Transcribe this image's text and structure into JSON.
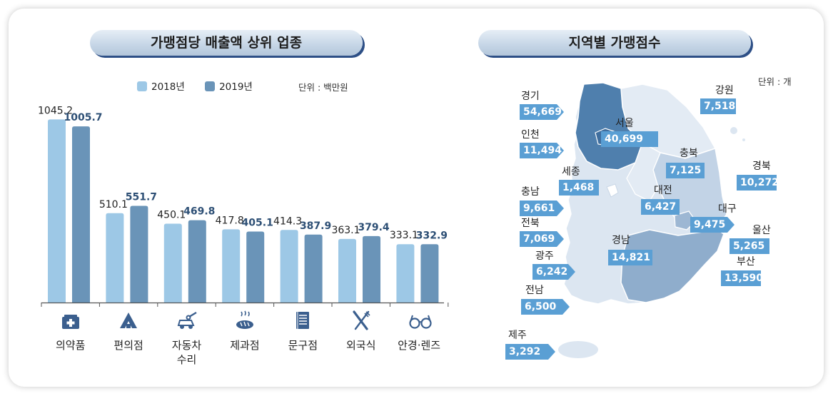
{
  "colors": {
    "y2018": "#9dc8e6",
    "y2019": "#6a94b8",
    "label2019": "#2d4f75",
    "tag": "#5a9fd4"
  },
  "left_panel": {
    "title": "가맹점당 매출액 상위 업종",
    "unit": "단위 : 백만원"
  },
  "right_panel": {
    "title": "지역별 가맹점수",
    "unit": "단위 : 개"
  },
  "chart_data": {
    "type": "bar",
    "title": "가맹점당 매출액 상위 업종",
    "categories": [
      "의약품",
      "편의점",
      "자동차 수리",
      "제과점",
      "문구점",
      "외국식",
      "안경·렌즈"
    ],
    "category_lines": [
      [
        "의약품"
      ],
      [
        "편의점"
      ],
      [
        "자동차",
        "수리"
      ],
      [
        "제과점"
      ],
      [
        "문구점"
      ],
      [
        "외국식"
      ],
      [
        "안경·렌즈"
      ]
    ],
    "category_icons": [
      "medicine-icon",
      "convenience-store-icon",
      "car-repair-icon",
      "bakery-icon",
      "stationery-icon",
      "fork-knife-icon",
      "glasses-icon"
    ],
    "series": [
      {
        "name": "2018년",
        "values": [
          1045.2,
          510.1,
          450.1,
          417.8,
          414.3,
          363.1,
          333.1
        ],
        "labels": [
          "1045.2",
          "510.1",
          "450.1",
          "417.8",
          "414.3",
          "363.1",
          "333.1"
        ]
      },
      {
        "name": "2019년",
        "values": [
          1005.7,
          551.7,
          469.8,
          405.1,
          387.9,
          379.4,
          332.9
        ],
        "labels": [
          "1005.7",
          "551.7",
          "469.8",
          "405.1",
          "387.9",
          "379.4",
          "332.9"
        ]
      }
    ],
    "ylabel": "단위 : 백만원",
    "legend": "top-center"
  },
  "regions": [
    {
      "name": "경기",
      "value": "54,669"
    },
    {
      "name": "인천",
      "value": "11,494"
    },
    {
      "name": "서울",
      "value": "40,699"
    },
    {
      "name": "강원",
      "value": "7,518"
    },
    {
      "name": "세종",
      "value": "1,468"
    },
    {
      "name": "충북",
      "value": "7,125"
    },
    {
      "name": "경북",
      "value": "10,272"
    },
    {
      "name": "충남",
      "value": "9,661"
    },
    {
      "name": "대전",
      "value": "6,427"
    },
    {
      "name": "대구",
      "value": "9,475"
    },
    {
      "name": "전북",
      "value": "7,069"
    },
    {
      "name": "울산",
      "value": "5,265"
    },
    {
      "name": "경남",
      "value": "14,821"
    },
    {
      "name": "광주",
      "value": "6,242"
    },
    {
      "name": "부산",
      "value": "13,590"
    },
    {
      "name": "전남",
      "value": "6,500"
    },
    {
      "name": "제주",
      "value": "3,292"
    }
  ]
}
